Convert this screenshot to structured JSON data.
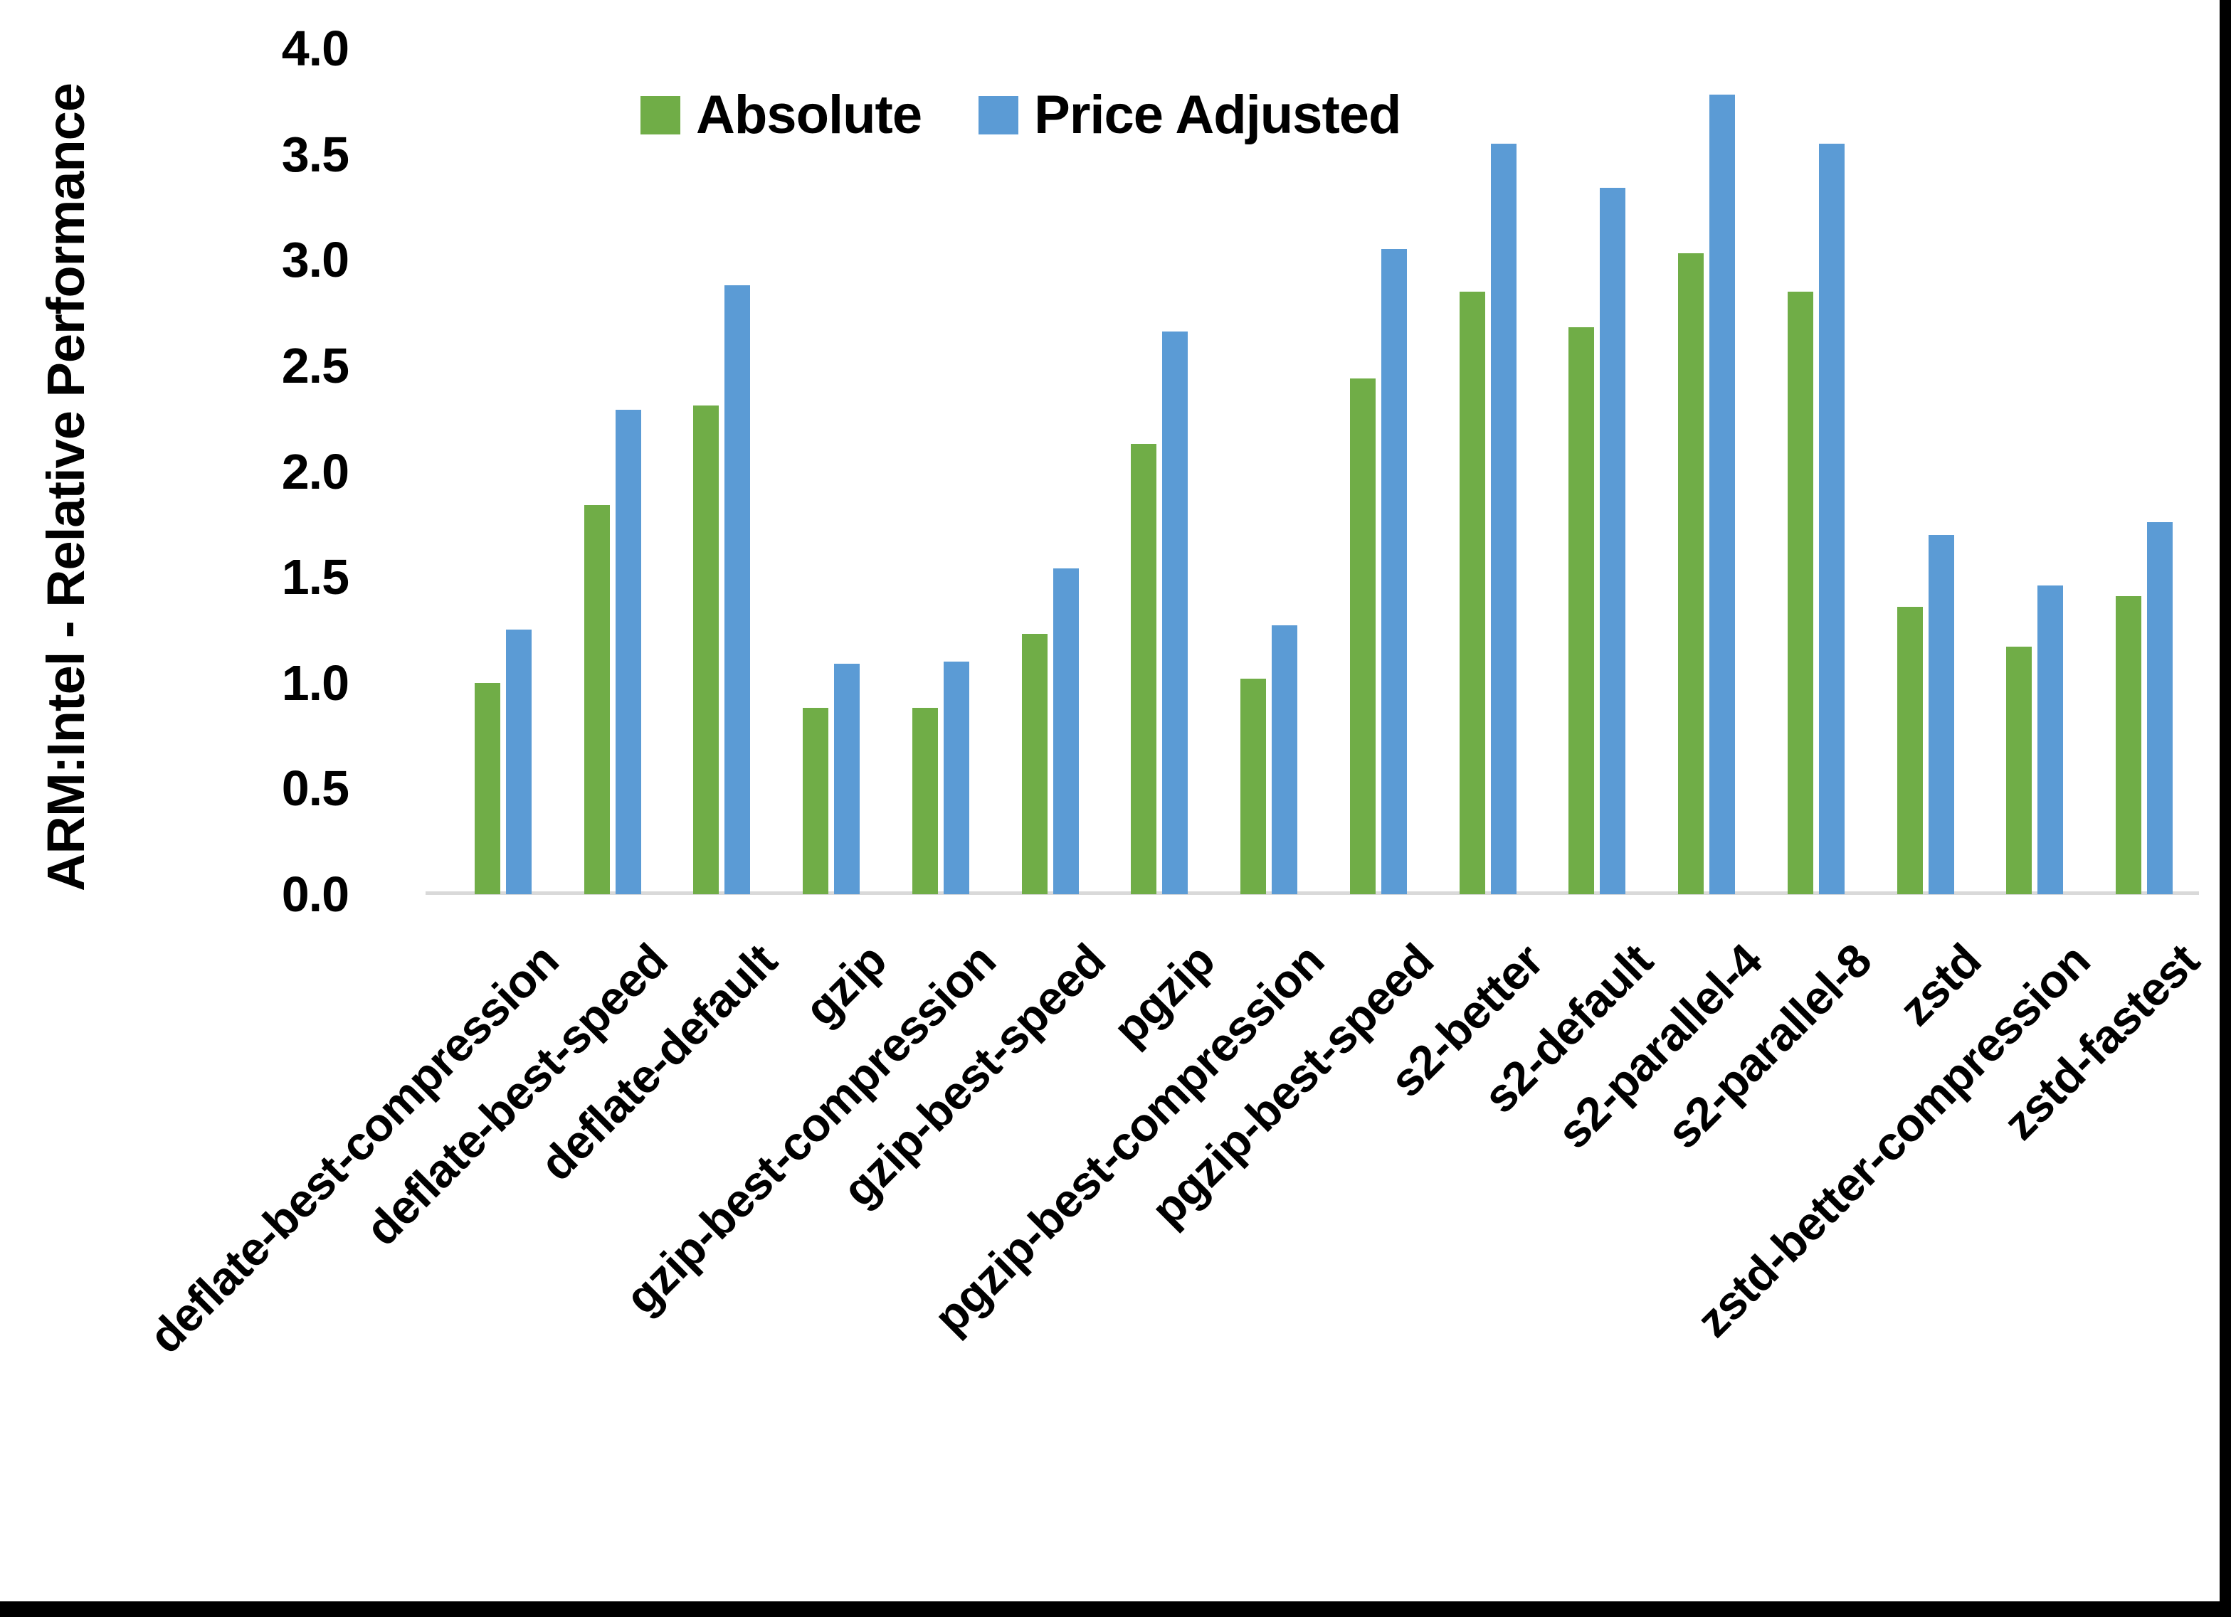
{
  "figure": {
    "background": "#ffffff",
    "frame_border_color": "#000000"
  },
  "chart_data": {
    "type": "bar",
    "title": "",
    "xlabel": "",
    "ylabel": "ARM:Intel - Relative Performance",
    "ylim": [
      0.0,
      4.0
    ],
    "ytick_step": 0.5,
    "ytick_labels": [
      "0.0",
      "0.5",
      "1.0",
      "1.5",
      "2.0",
      "2.5",
      "3.0",
      "3.5",
      "4.0"
    ],
    "grid": false,
    "legend_position": "top-center",
    "axis_line_color": "#d9d9d9",
    "categories": [
      "deflate-best-compression",
      "deflate-best-speed",
      "deflate-default",
      "gzip",
      "gzip-best-compression",
      "gzip-best-speed",
      "pgzip",
      "pgzip-best-compression",
      "pgzip-best-speed",
      "s2-better",
      "s2-default",
      "s2-parallel-4",
      "s2-parallel-8",
      "zstd",
      "zstd-better-compression",
      "zstd-fastest"
    ],
    "series": [
      {
        "name": "Absolute",
        "color": "#70AD47",
        "values": [
          1.0,
          1.84,
          2.31,
          0.88,
          0.88,
          1.23,
          2.13,
          1.02,
          2.44,
          2.85,
          2.68,
          3.03,
          2.85,
          1.36,
          1.17,
          1.41
        ]
      },
      {
        "name": "Price Adjusted",
        "color": "#5B9BD5",
        "values": [
          1.25,
          2.29,
          2.88,
          1.09,
          1.1,
          1.54,
          2.66,
          1.27,
          3.05,
          3.55,
          3.34,
          3.78,
          3.55,
          1.7,
          1.46,
          1.76
        ]
      }
    ]
  }
}
